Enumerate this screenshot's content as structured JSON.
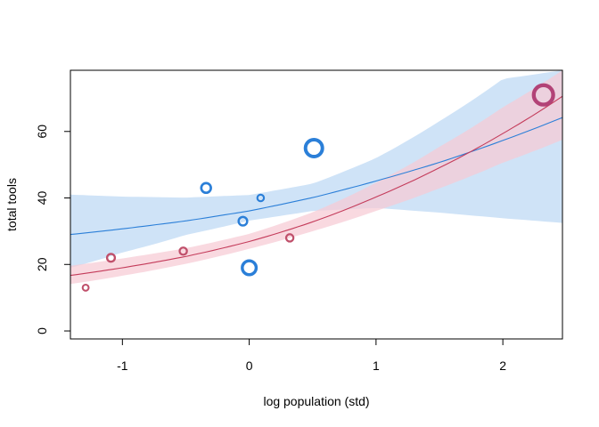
{
  "chart_data": {
    "type": "scatter",
    "title": "",
    "xlabel": "log population (std)",
    "ylabel": "total tools",
    "xlim": [
      -1.41,
      2.47
    ],
    "ylim": [
      -2.4,
      78.4
    ],
    "x_ticks": [
      -1,
      0,
      1,
      2
    ],
    "y_ticks": [
      0,
      20,
      40,
      60
    ],
    "grid": false,
    "legend": "none",
    "colors": {
      "blue": "#2B7FD8",
      "blue_band": "#CFE3F7",
      "red": "#C43B5A",
      "red_band": "#F7CAD4",
      "overlap_band": "#D4BDD7",
      "red_points": "#C0506B",
      "big_red_point": "#B24377"
    },
    "series": [
      {
        "color": "blue",
        "curve": {
          "x": [
            -1.41,
            -1.0,
            -0.5,
            0.0,
            0.5,
            1.0,
            1.5,
            2.0,
            2.47
          ],
          "mean": [
            29.0,
            30.7,
            33.1,
            36.1,
            40.1,
            45.1,
            50.7,
            57.3,
            64.2
          ],
          "lower": [
            19.0,
            23.6,
            28.9,
            33.2,
            36.1,
            37.0,
            35.6,
            33.9,
            32.5
          ],
          "upper": [
            41.0,
            40.4,
            40.1,
            40.9,
            44.3,
            52.0,
            63.1,
            75.8,
            78.4
          ]
        },
        "points": [
          {
            "x": -0.34,
            "y": 43,
            "size": 1.6
          },
          {
            "x": -0.05,
            "y": 33,
            "size": 1.4
          },
          {
            "x": 0.09,
            "y": 40,
            "size": 1.1
          },
          {
            "x": 0.0,
            "y": 19,
            "size": 2.3
          },
          {
            "x": 0.51,
            "y": 55,
            "size": 2.8
          }
        ]
      },
      {
        "color": "red",
        "curve": {
          "x": [
            -1.41,
            -1.0,
            -0.5,
            0.0,
            0.5,
            1.0,
            1.5,
            2.0,
            2.47
          ],
          "mean": [
            16.7,
            19.0,
            22.4,
            26.9,
            32.8,
            40.3,
            49.1,
            59.4,
            70.6
          ],
          "lower": [
            14.1,
            16.6,
            20.2,
            24.7,
            30.0,
            36.1,
            42.9,
            50.6,
            57.5
          ],
          "upper": [
            19.6,
            21.8,
            24.9,
            29.2,
            35.7,
            44.6,
            55.4,
            67.3,
            78.4
          ]
        },
        "points": [
          {
            "x": -1.29,
            "y": 13,
            "size": 1.0
          },
          {
            "x": -1.09,
            "y": 22,
            "size": 1.3
          },
          {
            "x": -0.52,
            "y": 24,
            "size": 1.2
          },
          {
            "x": 0.32,
            "y": 28,
            "size": 1.2
          },
          {
            "x": 2.32,
            "y": 71,
            "size": 3.2
          }
        ]
      }
    ]
  }
}
